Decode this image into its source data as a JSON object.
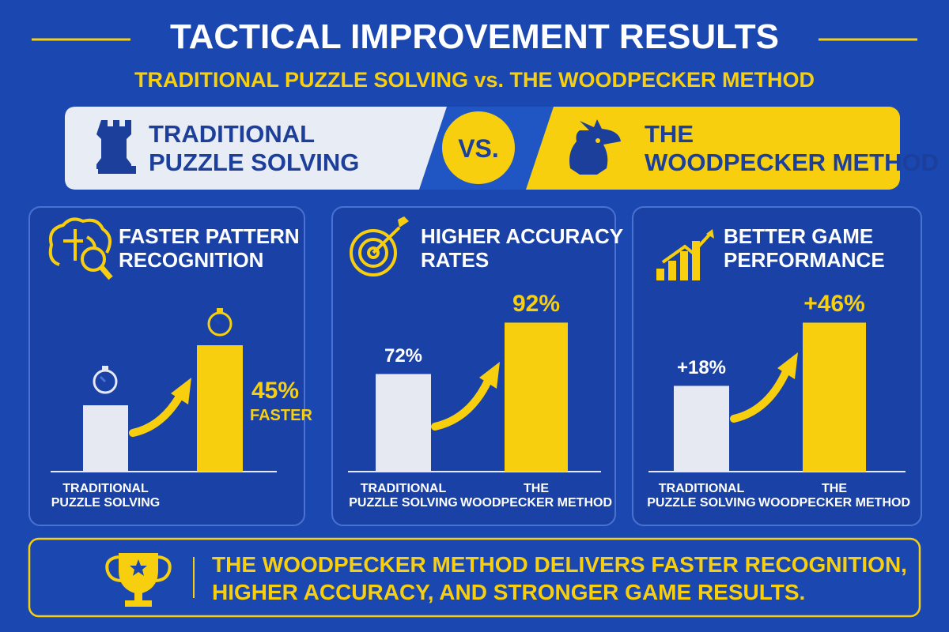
{
  "header": {
    "title": "TACTICAL IMPROVEMENT RESULTS",
    "subtitle": "TRADITIONAL PUZZLE SOLVING vs. THE WOODPECKER METHOD"
  },
  "comparison": {
    "left": "TRADITIONAL\nPUZZLE SOLVING",
    "vs": "VS.",
    "right": "THE\nWOODPECKER METHOD"
  },
  "chart_data": [
    {
      "type": "bar",
      "title": "FASTER PATTERN\nRECOGNITION",
      "categories": [
        "TRADITIONAL\nPUZZLE SOLVING",
        null
      ],
      "values": [
        42,
        80
      ],
      "colors": [
        "#e6e9f2",
        "#f7cf0f"
      ],
      "ylim": [
        0,
        100
      ],
      "annotation": [
        "45%",
        "FASTER"
      ]
    },
    {
      "type": "bar",
      "title": "HIGHER ACCURACY\nRATES",
      "categories": [
        "TRADITIONAL\nPUZZLE SOLVING",
        "THE\nWOODPECKER METHOD"
      ],
      "values": [
        72,
        92
      ],
      "value_labels": [
        "72%",
        "92%"
      ],
      "colors": [
        "#e6e9f2",
        "#f7cf0f"
      ],
      "ylim": [
        34,
        95.5
      ]
    },
    {
      "type": "bar",
      "title": "BETTER GAME\nPERFORMANCE",
      "categories": [
        "TRADITIONAL\nPUZZLE SOLVING",
        "THE\nWOODPECKER METHOD"
      ],
      "values": [
        18,
        46
      ],
      "value_labels": [
        "+18%",
        "+46%"
      ],
      "colors": [
        "#e6e9f2",
        "#f7cf0f"
      ],
      "ylim": [
        -20,
        50
      ]
    }
  ],
  "footer": {
    "text": "THE WOODPECKER METHOD DELIVERS FASTER RECOGNITION,\nHIGHER ACCURACY, AND STRONGER GAME RESULTS."
  }
}
